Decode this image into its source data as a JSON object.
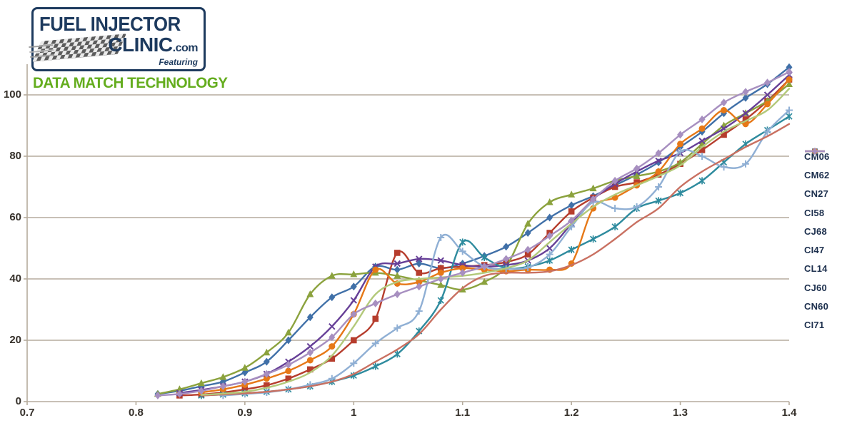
{
  "logo": {
    "line1": "FUEL INJECTOR",
    "line2": "CLINIC",
    "line2_suffix": ".com",
    "featuring": "Featuring",
    "tagline": "DATA MATCH TECHNOLOGY",
    "navy": "#1d3a5e",
    "green": "#64ad1e"
  },
  "chart_data": {
    "type": "line",
    "xlim": [
      0.7,
      1.4
    ],
    "ylim": [
      0,
      110
    ],
    "grid": true,
    "legend_position": "right",
    "x_ticks": [
      "0.7",
      "0.8",
      "0.9",
      "1",
      "1.1",
      "1.2",
      "1.3",
      "1.4"
    ],
    "y_ticks": [
      "0",
      "20",
      "40",
      "60",
      "80",
      "100"
    ],
    "grid_color": "#b5ac9d",
    "tick_text_color": "#35302a",
    "x": [
      0.82,
      0.84,
      0.86,
      0.88,
      0.9,
      0.92,
      0.94,
      0.96,
      0.98,
      1.0,
      1.02,
      1.04,
      1.06,
      1.08,
      1.1,
      1.12,
      1.14,
      1.16,
      1.18,
      1.2,
      1.22,
      1.24,
      1.26,
      1.28,
      1.3,
      1.32,
      1.34,
      1.36,
      1.38,
      1.4
    ],
    "series": [
      {
        "name": "CM06",
        "color": "#4070a8",
        "marker": "diamond",
        "values": [
          2.5,
          3.5,
          5,
          6.5,
          9.5,
          13,
          20,
          27.5,
          34,
          37.5,
          44,
          43,
          45,
          43.5,
          45,
          47.5,
          50.5,
          55,
          60,
          64,
          67,
          70.5,
          74,
          78,
          83,
          88,
          94,
          99,
          103.5,
          109
        ]
      },
      {
        "name": "CM62",
        "color": "#b63d2d",
        "marker": "square",
        "values": [
          null,
          2,
          2.3,
          3,
          4,
          5.3,
          7.5,
          10.5,
          14,
          20,
          27,
          48.5,
          42,
          43.5,
          44,
          44.5,
          45.5,
          48,
          55,
          62,
          66.5,
          70,
          71.5,
          74,
          77.5,
          82,
          87,
          92,
          98,
          105
        ]
      },
      {
        "name": "CN27",
        "color": "#8ba23d",
        "marker": "triangle",
        "values": [
          2.5,
          4,
          6,
          8,
          11,
          16,
          22.5,
          35,
          41,
          41.5,
          42,
          41,
          39.5,
          38,
          36.5,
          39,
          44,
          58,
          65,
          67.5,
          69.5,
          72,
          73.5,
          75,
          78,
          84,
          90,
          94,
          98,
          103.5
        ]
      },
      {
        "name": "CI58",
        "color": "#663f97",
        "marker": "x",
        "values": [
          null,
          2.8,
          3.8,
          5,
          6.5,
          9,
          13,
          18,
          24.5,
          33,
          44,
          45,
          46.5,
          46,
          44.5,
          44,
          44.5,
          46,
          50,
          58,
          66,
          71,
          75,
          78.5,
          81,
          85,
          89,
          94,
          100,
          106.5
        ]
      },
      {
        "name": "CJ68",
        "color": "#2e8b9e",
        "marker": "star",
        "values": [
          null,
          null,
          2,
          2.3,
          2.7,
          3.2,
          4,
          5,
          6.5,
          8.5,
          11.5,
          15.5,
          23,
          33,
          52,
          47,
          43.5,
          44,
          46,
          49.5,
          53,
          57,
          63,
          65.5,
          68,
          72,
          78,
          84,
          88.5,
          93
        ]
      },
      {
        "name": "CI47",
        "color": "#e67817",
        "marker": "circle",
        "values": [
          null,
          null,
          3,
          4,
          5.5,
          7.5,
          10,
          13.5,
          18,
          28.5,
          43,
          38.5,
          39,
          42,
          43.5,
          43,
          42.5,
          43,
          43,
          45,
          63,
          66.5,
          70.5,
          75,
          84,
          89,
          95,
          90.5,
          97,
          105
        ]
      },
      {
        "name": "CL14",
        "color": "#8fafd4",
        "marker": "plus",
        "values": [
          null,
          null,
          null,
          2,
          2.5,
          3,
          4,
          5.5,
          7.5,
          12.5,
          19,
          24,
          29.5,
          53.5,
          49,
          44,
          43.3,
          43.7,
          48,
          57,
          65,
          63,
          63.5,
          70,
          81.5,
          80,
          76.5,
          77.5,
          88,
          95
        ]
      },
      {
        "name": "CJ60",
        "color": "#c97061",
        "marker": "none",
        "values": [
          null,
          null,
          2,
          2.3,
          2.7,
          3.2,
          4,
          5,
          6.5,
          9,
          13,
          17,
          22,
          30,
          37,
          41,
          42,
          42,
          42.5,
          44.5,
          48,
          53,
          58.5,
          63,
          70,
          75,
          79,
          83,
          86.5,
          90.5
        ]
      },
      {
        "name": "CN60",
        "color": "#b3c97a",
        "marker": "none",
        "values": [
          null,
          null,
          2.2,
          2.6,
          3.2,
          4.5,
          6.5,
          9.5,
          15,
          24.5,
          35,
          39,
          40,
          40.5,
          41,
          42,
          43.5,
          46,
          52,
          58,
          63.5,
          67.5,
          70.5,
          73.5,
          77,
          83,
          88,
          91.5,
          95,
          102
        ]
      },
      {
        "name": "CI71",
        "color": "#a78fc0",
        "marker": "diamond",
        "values": [
          2,
          2.5,
          3.5,
          5,
          6.5,
          9,
          12,
          16,
          21,
          28.5,
          32,
          35,
          37.5,
          40,
          42,
          44,
          46.5,
          49.5,
          54,
          59,
          66,
          72,
          76,
          81,
          87,
          92,
          97.5,
          101,
          104,
          107.5
        ]
      }
    ]
  }
}
